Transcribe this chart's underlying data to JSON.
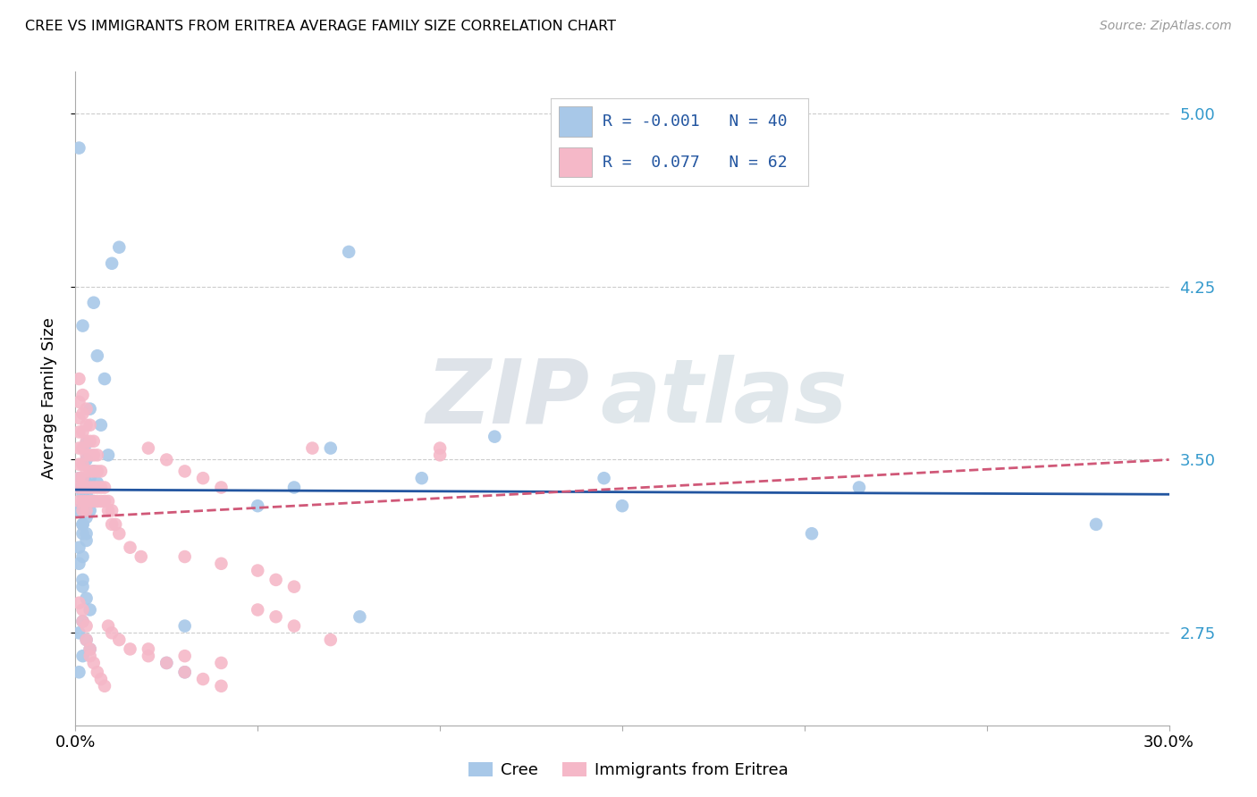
{
  "title": "CREE VS IMMIGRANTS FROM ERITREA AVERAGE FAMILY SIZE CORRELATION CHART",
  "source": "Source: ZipAtlas.com",
  "ylabel": "Average Family Size",
  "xmin": 0.0,
  "xmax": 0.3,
  "ymin": 2.35,
  "ymax": 5.18,
  "yticks": [
    2.75,
    3.5,
    4.25,
    5.0
  ],
  "xtick_values": [
    0.0,
    0.05,
    0.1,
    0.15,
    0.2,
    0.25,
    0.3
  ],
  "legend_R_cree": "-0.001",
  "legend_N_cree": "40",
  "legend_R_eritrea": "0.077",
  "legend_N_eritrea": "62",
  "color_cree_scatter": "#a8c8e8",
  "color_eritrea_scatter": "#f5b8c8",
  "color_cree_line": "#2255a0",
  "color_eritrea_line": "#d05878",
  "watermark_zip": "ZIP",
  "watermark_atlas": "atlas",
  "cree_x": [
    0.001,
    0.01,
    0.005,
    0.012,
    0.002,
    0.006,
    0.008,
    0.004,
    0.007,
    0.003,
    0.009,
    0.003,
    0.005,
    0.004,
    0.006,
    0.004,
    0.003,
    0.005,
    0.002,
    0.004,
    0.003,
    0.002,
    0.002,
    0.003,
    0.001,
    0.002,
    0.001,
    0.002,
    0.001,
    0.002,
    0.003,
    0.001,
    0.002,
    0.001,
    0.002,
    0.003,
    0.07,
    0.115,
    0.145,
    0.215
  ],
  "cree_y": [
    4.85,
    4.35,
    4.18,
    4.42,
    4.08,
    3.95,
    3.85,
    3.72,
    3.65,
    3.57,
    3.52,
    3.5,
    3.45,
    3.42,
    3.4,
    3.38,
    3.35,
    3.32,
    3.3,
    3.28,
    3.25,
    3.22,
    3.18,
    3.15,
    3.38,
    3.35,
    3.42,
    3.3,
    3.28,
    3.22,
    3.18,
    3.12,
    3.08,
    3.05,
    2.98,
    3.4,
    3.55,
    3.6,
    3.42,
    3.38
  ],
  "cree_x2": [
    0.002,
    0.003,
    0.004,
    0.002,
    0.001,
    0.003,
    0.004,
    0.002,
    0.001,
    0.06,
    0.095,
    0.28,
    0.025,
    0.03,
    0.05,
    0.078,
    0.15,
    0.202,
    0.03,
    0.075
  ],
  "cree_y2": [
    2.95,
    2.9,
    2.85,
    2.8,
    2.75,
    2.72,
    2.68,
    2.65,
    2.58,
    3.38,
    3.42,
    3.22,
    2.62,
    2.78,
    3.3,
    2.82,
    3.3,
    3.18,
    2.58,
    4.4
  ],
  "eritrea_x": [
    0.001,
    0.001,
    0.001,
    0.001,
    0.001,
    0.001,
    0.001,
    0.001,
    0.001,
    0.002,
    0.002,
    0.002,
    0.002,
    0.002,
    0.002,
    0.002,
    0.002,
    0.002,
    0.003,
    0.003,
    0.003,
    0.003,
    0.003,
    0.003,
    0.003,
    0.003,
    0.004,
    0.004,
    0.004,
    0.004,
    0.004,
    0.004,
    0.005,
    0.005,
    0.005,
    0.005,
    0.005,
    0.006,
    0.006,
    0.006,
    0.006,
    0.007,
    0.007,
    0.007,
    0.008,
    0.008,
    0.009,
    0.009,
    0.01,
    0.01,
    0.011,
    0.012,
    0.015,
    0.018,
    0.02,
    0.025,
    0.03,
    0.035,
    0.04,
    0.065,
    0.1,
    0.1
  ],
  "eritrea_y": [
    3.85,
    3.75,
    3.68,
    3.62,
    3.55,
    3.48,
    3.42,
    3.38,
    3.32,
    3.78,
    3.7,
    3.62,
    3.55,
    3.48,
    3.42,
    3.38,
    3.32,
    3.28,
    3.72,
    3.65,
    3.58,
    3.52,
    3.45,
    3.38,
    3.32,
    3.28,
    3.65,
    3.58,
    3.52,
    3.45,
    3.38,
    3.32,
    3.58,
    3.52,
    3.45,
    3.38,
    3.32,
    3.52,
    3.45,
    3.38,
    3.32,
    3.45,
    3.38,
    3.32,
    3.38,
    3.32,
    3.32,
    3.28,
    3.28,
    3.22,
    3.22,
    3.18,
    3.12,
    3.08,
    3.55,
    3.5,
    3.45,
    3.42,
    3.38,
    3.55,
    3.55,
    3.52
  ],
  "eritrea_x2": [
    0.001,
    0.002,
    0.002,
    0.003,
    0.003,
    0.004,
    0.004,
    0.005,
    0.006,
    0.007,
    0.008,
    0.009,
    0.01,
    0.012,
    0.015,
    0.02,
    0.025,
    0.03,
    0.035,
    0.04,
    0.05,
    0.055,
    0.06,
    0.07,
    0.03,
    0.04,
    0.05,
    0.055,
    0.06,
    0.04,
    0.03,
    0.02
  ],
  "eritrea_y2": [
    2.88,
    2.85,
    2.8,
    2.78,
    2.72,
    2.68,
    2.65,
    2.62,
    2.58,
    2.55,
    2.52,
    2.78,
    2.75,
    2.72,
    2.68,
    2.65,
    2.62,
    2.58,
    2.55,
    2.52,
    2.85,
    2.82,
    2.78,
    2.72,
    3.08,
    3.05,
    3.02,
    2.98,
    2.95,
    2.62,
    2.65,
    2.68
  ]
}
